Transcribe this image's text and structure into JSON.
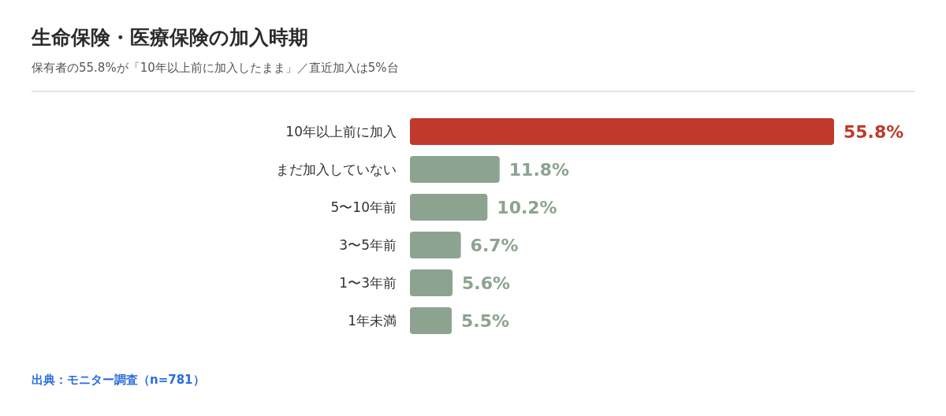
{
  "chart_data": {
    "type": "bar",
    "orientation": "horizontal",
    "title": "生命保険・医療保険の加入時期",
    "subtitle": "保有者の55.8%が「10年以上前に加入したまま」／直近加入は5%台",
    "categories": [
      "10年以上前に加入",
      "まだ加入していない",
      "5〜10年前",
      "3〜5年前",
      "1〜3年前",
      "1年未満"
    ],
    "values": [
      55.8,
      11.8,
      10.2,
      6.7,
      5.6,
      5.5
    ],
    "colors": [
      "#c0392b",
      "#8ca390",
      "#8ca390",
      "#8ca390",
      "#8ca390",
      "#8ca390"
    ],
    "value_labels": [
      "55.8%",
      "11.8%",
      "10.2%",
      "6.7%",
      "5.6%",
      "5.5%"
    ],
    "annotations": [
      "出典：モニター調査（n=781）"
    ]
  }
}
